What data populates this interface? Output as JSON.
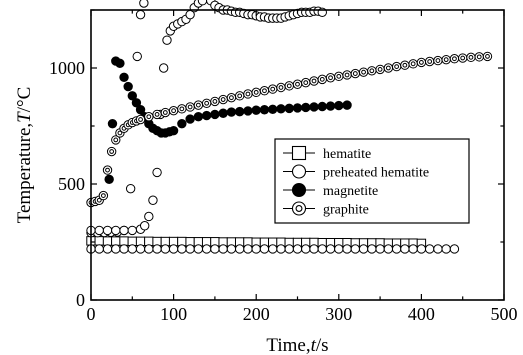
{
  "chart_data": {
    "type": "scatter",
    "xlabel": "Time,",
    "xlabel_var": "t",
    "xlabel_unit": "/s",
    "ylabel": "Temperature,",
    "ylabel_var": "T",
    "ylabel_unit": "/°C",
    "xlim": [
      0,
      500
    ],
    "ylim": [
      0,
      1250
    ],
    "xticks": [
      0,
      100,
      200,
      300,
      400,
      500
    ],
    "yticks": [
      0,
      500,
      1000
    ],
    "grid": false,
    "legend_position": "center-right",
    "series": [
      {
        "name": "hematite",
        "marker": "square",
        "x": [
          0,
          10,
          20,
          30,
          40,
          50,
          60,
          70,
          80,
          90,
          100,
          110,
          120,
          130,
          140,
          150,
          160,
          170,
          180,
          190,
          200,
          210,
          220,
          230,
          240,
          250,
          260,
          270,
          280,
          290,
          300,
          310,
          320,
          330,
          340,
          350,
          360,
          370,
          380,
          390,
          400
        ],
        "y": [
          255,
          255,
          254,
          254,
          254,
          253,
          253,
          253,
          252,
          252,
          252,
          252,
          251,
          251,
          251,
          251,
          250,
          250,
          250,
          250,
          249,
          249,
          249,
          249,
          248,
          248,
          248,
          248,
          247,
          247,
          247,
          247,
          246,
          246,
          246,
          246,
          245,
          245,
          245,
          245,
          244
        ]
      },
      {
        "name": "preheated hematite",
        "marker": "open-circle",
        "x": [
          0,
          10,
          20,
          30,
          40,
          50,
          60,
          70,
          80,
          90,
          100,
          110,
          120,
          130,
          140,
          150,
          160,
          170,
          180,
          190,
          200,
          210,
          220,
          230,
          240,
          250,
          260,
          270,
          280,
          290,
          300,
          310,
          320,
          330,
          340,
          350,
          360,
          370,
          380,
          390,
          400,
          410,
          420,
          430,
          440
        ],
        "y": [
          220,
          220,
          220,
          220,
          220,
          220,
          220,
          220,
          220,
          220,
          220,
          220,
          220,
          220,
          220,
          220,
          220,
          220,
          220,
          220,
          220,
          220,
          220,
          220,
          220,
          220,
          220,
          220,
          220,
          220,
          220,
          220,
          220,
          220,
          220,
          220,
          220,
          220,
          220,
          220,
          220,
          220,
          220,
          220,
          220
        ]
      },
      {
        "name": "preheated hematite",
        "marker": "open-circle",
        "x": [
          0,
          8,
          16,
          24,
          32,
          40,
          48,
          56,
          60,
          64,
          70
        ],
        "y": [
          290,
          290,
          291,
          292,
          293,
          300,
          480,
          1050,
          1230,
          1280,
          1300
        ]
      },
      {
        "name": "preheated hematite",
        "marker": "open-circle",
        "x": [
          0,
          10,
          20,
          30,
          40,
          50,
          60,
          65,
          70,
          75,
          80,
          84,
          88,
          92,
          96,
          100,
          105,
          110,
          115,
          120,
          125,
          130,
          135,
          140,
          145,
          150,
          155,
          160,
          165,
          170,
          175,
          180,
          185,
          190,
          195,
          200,
          205,
          210,
          215,
          220,
          225,
          230,
          235,
          240,
          245,
          250,
          255,
          260,
          265,
          270,
          275,
          280
        ],
        "y": [
          300,
          300,
          300,
          300,
          300,
          300,
          305,
          320,
          360,
          430,
          550,
          800,
          1000,
          1120,
          1160,
          1180,
          1190,
          1200,
          1210,
          1230,
          1260,
          1280,
          1290,
          1295,
          1290,
          1270,
          1260,
          1250,
          1250,
          1245,
          1240,
          1240,
          1235,
          1230,
          1230,
          1225,
          1220,
          1220,
          1215,
          1215,
          1215,
          1215,
          1220,
          1225,
          1230,
          1235,
          1240,
          1240,
          1240,
          1245,
          1245,
          1240
        ]
      },
      {
        "name": "magnetite",
        "marker": "filled-circle",
        "x": [
          22,
          26,
          30,
          35,
          40,
          45,
          50,
          55,
          60,
          65,
          70,
          75,
          80,
          85,
          90,
          95,
          100,
          110,
          120,
          130,
          140,
          150,
          160,
          170,
          180,
          190,
          200,
          210,
          220,
          230,
          240,
          250,
          260,
          270,
          280,
          290,
          300,
          310
        ],
        "y": [
          520,
          760,
          1030,
          1020,
          960,
          920,
          880,
          850,
          820,
          790,
          760,
          740,
          730,
          720,
          720,
          725,
          730,
          760,
          780,
          790,
          795,
          800,
          805,
          810,
          812,
          815,
          818,
          820,
          822,
          824,
          826,
          828,
          830,
          832,
          834,
          836,
          838,
          840
        ]
      },
      {
        "name": "graphite",
        "marker": "double-circle",
        "x": [
          0,
          5,
          10,
          15,
          20,
          25,
          30,
          35,
          40,
          45,
          50,
          55,
          60,
          70,
          80,
          90,
          100,
          110,
          120,
          130,
          140,
          150,
          160,
          170,
          180,
          190,
          200,
          210,
          220,
          230,
          240,
          250,
          260,
          270,
          280,
          290,
          300,
          310,
          320,
          330,
          340,
          350,
          360,
          370,
          380,
          390,
          400,
          410,
          420,
          430,
          440,
          450,
          460,
          470,
          480
        ],
        "y": [
          420,
          425,
          430,
          450,
          560,
          640,
          690,
          720,
          740,
          755,
          765,
          772,
          778,
          790,
          800,
          808,
          816,
          824,
          832,
          840,
          848,
          856,
          864,
          872,
          880,
          888,
          895,
          902,
          909,
          916,
          923,
          930,
          937,
          944,
          951,
          958,
          964,
          970,
          976,
          982,
          988,
          994,
          1000,
          1006,
          1012,
          1018,
          1024,
          1028,
          1032,
          1036,
          1040,
          1043,
          1046,
          1048,
          1050
        ]
      }
    ]
  }
}
